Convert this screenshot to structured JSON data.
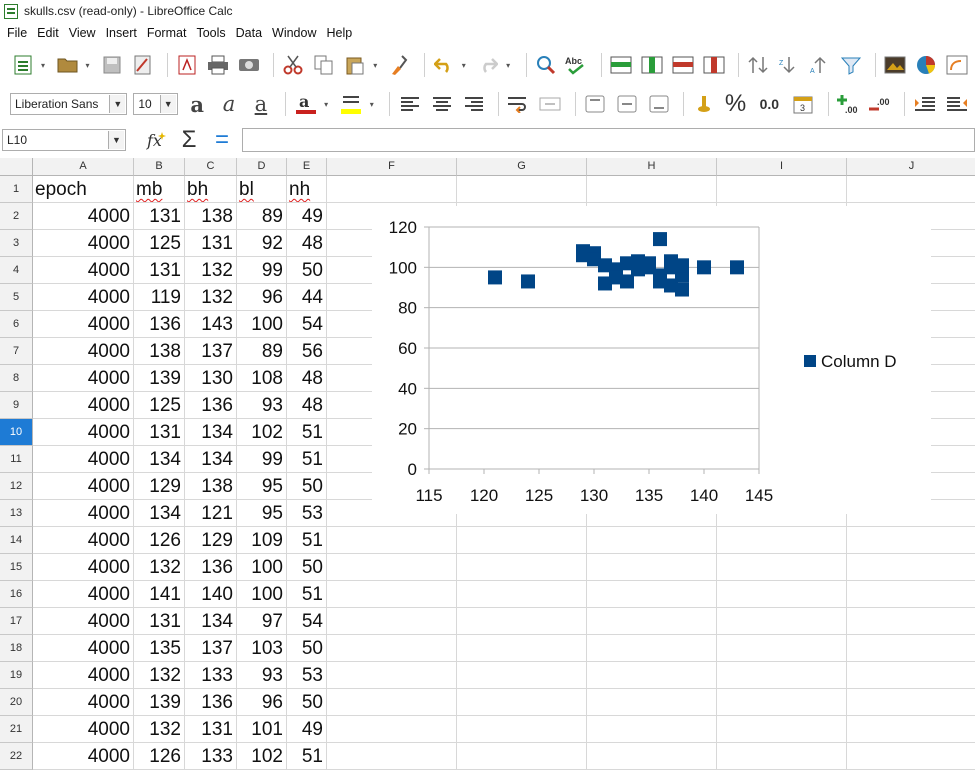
{
  "window": {
    "title": "skulls.csv (read-only) - LibreOffice Calc"
  },
  "menu": [
    "File",
    "Edit",
    "View",
    "Insert",
    "Format",
    "Tools",
    "Data",
    "Window",
    "Help"
  ],
  "toolbar": {
    "font_name": "Liberation Sans",
    "font_size": "10",
    "percent_label": "%",
    "decimal_label": "0.0"
  },
  "namebox": {
    "value": "L10"
  },
  "formula": {
    "value": ""
  },
  "columns": [
    "A",
    "B",
    "C",
    "D",
    "E",
    "F",
    "G",
    "H",
    "I",
    "J"
  ],
  "row_numbers": [
    "1",
    "2",
    "3",
    "4",
    "5",
    "6",
    "7",
    "8",
    "9",
    "10",
    "11",
    "12",
    "13",
    "14",
    "15",
    "16",
    "17",
    "18",
    "19",
    "20",
    "21",
    "22"
  ],
  "active_row": "10",
  "sheet": {
    "headers": [
      "epoch",
      "mb",
      "bh",
      "bl",
      "nh"
    ],
    "rows": [
      [
        "4000",
        "131",
        "138",
        "89",
        "49"
      ],
      [
        "4000",
        "125",
        "131",
        "92",
        "48"
      ],
      [
        "4000",
        "131",
        "132",
        "99",
        "50"
      ],
      [
        "4000",
        "119",
        "132",
        "96",
        "44"
      ],
      [
        "4000",
        "136",
        "143",
        "100",
        "54"
      ],
      [
        "4000",
        "138",
        "137",
        "89",
        "56"
      ],
      [
        "4000",
        "139",
        "130",
        "108",
        "48"
      ],
      [
        "4000",
        "125",
        "136",
        "93",
        "48"
      ],
      [
        "4000",
        "131",
        "134",
        "102",
        "51"
      ],
      [
        "4000",
        "134",
        "134",
        "99",
        "51"
      ],
      [
        "4000",
        "129",
        "138",
        "95",
        "50"
      ],
      [
        "4000",
        "134",
        "121",
        "95",
        "53"
      ],
      [
        "4000",
        "126",
        "129",
        "109",
        "51"
      ],
      [
        "4000",
        "132",
        "136",
        "100",
        "50"
      ],
      [
        "4000",
        "141",
        "140",
        "100",
        "51"
      ],
      [
        "4000",
        "131",
        "134",
        "97",
        "54"
      ],
      [
        "4000",
        "135",
        "137",
        "103",
        "50"
      ],
      [
        "4000",
        "132",
        "133",
        "93",
        "53"
      ],
      [
        "4000",
        "139",
        "136",
        "96",
        "50"
      ],
      [
        "4000",
        "132",
        "131",
        "101",
        "49"
      ],
      [
        "4000",
        "126",
        "133",
        "102",
        "51"
      ]
    ]
  },
  "chart_data": {
    "type": "scatter",
    "title": "",
    "xlabel": "",
    "ylabel": "",
    "xlim": [
      115,
      145
    ],
    "ylim": [
      0,
      120
    ],
    "x_ticks": [
      "115",
      "120",
      "125",
      "130",
      "135",
      "140",
      "145"
    ],
    "y_ticks": [
      "0",
      "20",
      "40",
      "60",
      "80",
      "100",
      "120"
    ],
    "grid": "horizontal",
    "legend": "right",
    "series": [
      {
        "name": "Column D",
        "color": "#004586",
        "points": [
          [
            121,
            95
          ],
          [
            124,
            93
          ],
          [
            129,
            108
          ],
          [
            129,
            106
          ],
          [
            130,
            107
          ],
          [
            130,
            104
          ],
          [
            131,
            101
          ],
          [
            131,
            92
          ],
          [
            132,
            99
          ],
          [
            132,
            95
          ],
          [
            133,
            93
          ],
          [
            133,
            102
          ],
          [
            134,
            103
          ],
          [
            134,
            99
          ],
          [
            135,
            102
          ],
          [
            135,
            100
          ],
          [
            136,
            114
          ],
          [
            136,
            96
          ],
          [
            136,
            93
          ],
          [
            137,
            103
          ],
          [
            137,
            100
          ],
          [
            137,
            91
          ],
          [
            138,
            89
          ],
          [
            138,
            96
          ],
          [
            138,
            101
          ],
          [
            140,
            100
          ],
          [
            143,
            100
          ]
        ]
      }
    ]
  }
}
